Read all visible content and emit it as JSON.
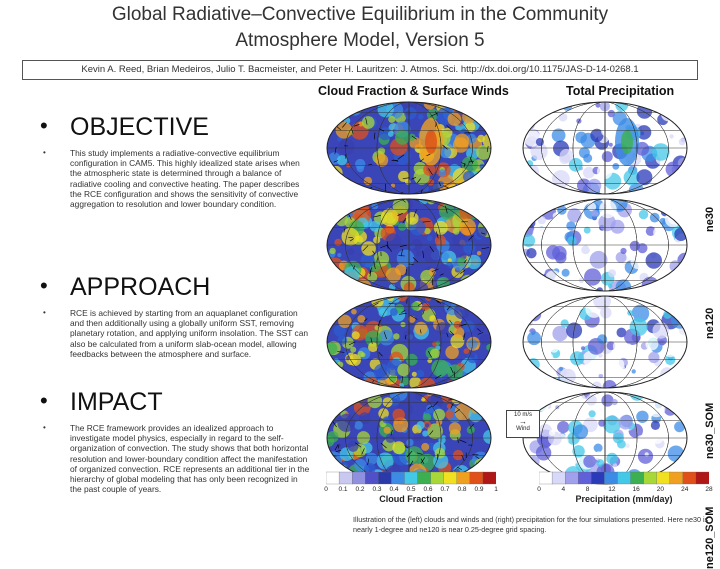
{
  "header": {
    "title_line1": "Global Radiative–Convective Equilibrium in the Community",
    "title_line2": "Atmosphere Model, Version 5",
    "citation": "Kevin A. Reed, Brian Medeiros, Julio T. Bacmeister, and Peter H. Lauritzen: J. Atmos. Sci. http://dx.doi.org/10.1175/JAS-D-14-0268.1"
  },
  "sections": [
    {
      "heading": "OBJECTIVE",
      "body": "This study implements a radiative-convective equilibrium configuration in CAM5. This highly idealized state arises when the atmospheric state is determined through a balance of radiative cooling and convective heating. The paper describes the RCE configuration and shows the sensitivity of convective aggregation to resolution and lower boundary condition."
    },
    {
      "heading": "APPROACH",
      "body": "RCE is achieved by starting from an aquaplanet configuration and then additionally using a globally uniform SST, removing planetary rotation, and applying uniform insolation. The SST can also be calculated from a uniform slab-ocean model, allowing feedbacks between the atmosphere and surface."
    },
    {
      "heading": "IMPACT",
      "body": "The RCE framework provides an idealized approach to investigate model physics, especially in regard to the self-organization of convection. The study shows that both horizontal resolution and lower-boundary condition affect the manifestation of organized convection. RCE represents an additional tier in the hierarchy of global modeling that has only been recognized in the past couple of years."
    }
  ],
  "figure": {
    "col_titles": [
      "Cloud Fraction & Surface Winds",
      "Total Precipitation"
    ],
    "row_labels": [
      "ne30",
      "ne120",
      "ne30_SOM",
      "ne120_SOM"
    ],
    "wind_scale_value": "10 m/s",
    "wind_scale_label": "Wind",
    "cloud_colorbar": {
      "ticks": [
        "0",
        "0.1",
        "0.2",
        "0.3",
        "0.4",
        "0.5",
        "0.6",
        "0.7",
        "0.8",
        "0.9",
        "1"
      ],
      "label": "Cloud Fraction",
      "colors": [
        "#ffffff",
        "#c8c8f0",
        "#9090e0",
        "#5050c8",
        "#2a3aa8",
        "#3c8ce6",
        "#44c8e8",
        "#3cb050",
        "#a8d838",
        "#f0e020",
        "#f0a020",
        "#e05018",
        "#b01818"
      ]
    },
    "precip_colorbar": {
      "ticks": [
        "0",
        "4",
        "8",
        "12",
        "16",
        "20",
        "24",
        "28"
      ],
      "label": "Precipitation (mm/day)",
      "colors": [
        "#ffffff",
        "#d8d8f8",
        "#a0a0ec",
        "#6060d8",
        "#2a3ab8",
        "#3c8ce6",
        "#44c8e8",
        "#3cb050",
        "#a8d838",
        "#f0e020",
        "#f0a020",
        "#e05018",
        "#b01818"
      ]
    }
  },
  "caption": "Illustration of the (left) clouds and winds and (right) precipitation for the four simulations presented. Here ne30 is nearly 1-degree and ne120 is near 0.25-degree grid spacing."
}
